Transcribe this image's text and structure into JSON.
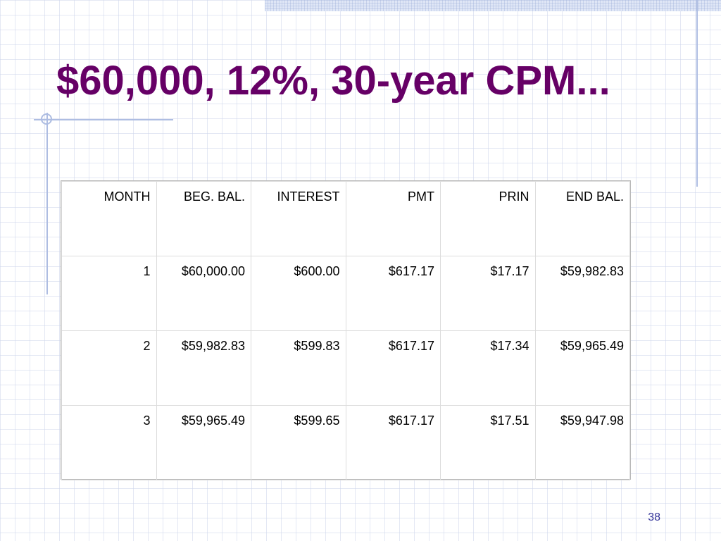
{
  "slide": {
    "title": "$60,000, 12%, 30-year CPM...",
    "page_number": "38"
  },
  "table": {
    "headers": [
      "MONTH",
      "BEG. BAL.",
      "INTEREST",
      "PMT",
      "PRIN",
      "END BAL."
    ],
    "rows": [
      [
        "1",
        "$60,000.00",
        "$600.00",
        "$617.17",
        "$17.17",
        "$59,982.83"
      ],
      [
        "2",
        "$59,982.83",
        "$599.83",
        "$617.17",
        "$17.34",
        "$59,965.49"
      ],
      [
        "3",
        "$59,965.49",
        "$599.65",
        "$617.17",
        "$17.51",
        "$59,947.98"
      ]
    ]
  },
  "colors": {
    "title": "#660066",
    "page_number": "#333399",
    "accent_lines": "#aebde2"
  }
}
